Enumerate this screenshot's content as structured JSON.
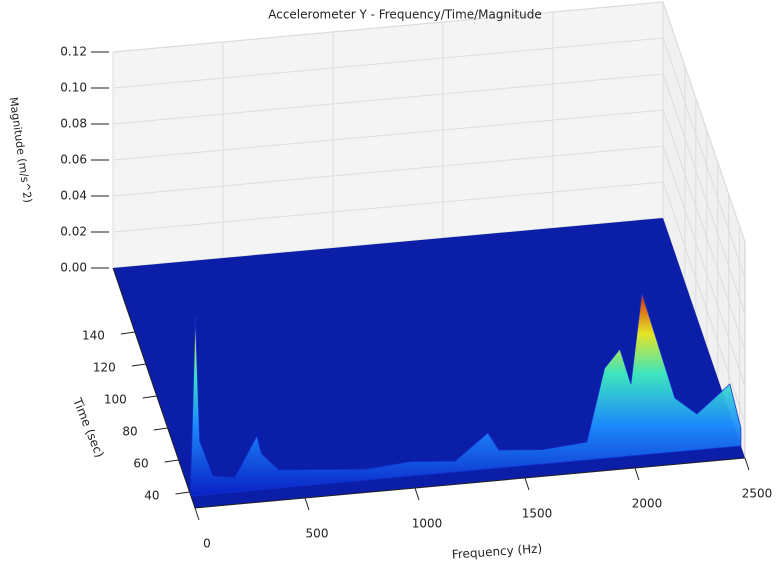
{
  "chart_data": {
    "type": "surface3d",
    "title": "Accelerometer Y - Frequency/Time/Magnitude",
    "xlabel": "Frequency (Hz)",
    "ylabel": "Time (sec)",
    "zlabel": "Magnitude (m/s^2)",
    "xlim": [
      0,
      2500
    ],
    "ylim": [
      30,
      180
    ],
    "zlim": [
      0,
      0.12
    ],
    "xticks": [
      0,
      500,
      1000,
      1500,
      2000,
      2500
    ],
    "yticks": [
      40,
      60,
      80,
      100,
      120,
      140
    ],
    "zticks": [
      {
        "value": 0,
        "label": "0.00"
      },
      {
        "value": 0.02,
        "label": "0.02"
      },
      {
        "value": 0.04,
        "label": "0.04"
      },
      {
        "value": 0.06,
        "label": "0.06"
      },
      {
        "value": 0.08,
        "label": "0.08"
      },
      {
        "value": 0.1,
        "label": "0.10"
      },
      {
        "value": 0.12,
        "label": "0.12"
      }
    ],
    "grid": true,
    "x": [
      0,
      20,
      40,
      100,
      200,
      300,
      320,
      400,
      600,
      800,
      1000,
      1200,
      1350,
      1400,
      1600,
      1800,
      1880,
      1950,
      2000,
      2050,
      2100,
      2200,
      2300,
      2450,
      2500
    ],
    "values": [
      0.01,
      0.1,
      0.03,
      0.01,
      0.008,
      0.03,
      0.02,
      0.01,
      0.008,
      0.006,
      0.008,
      0.006,
      0.02,
      0.01,
      0.008,
      0.01,
      0.05,
      0.06,
      0.04,
      0.09,
      0.07,
      0.03,
      0.02,
      0.035,
      0.01
    ]
  }
}
